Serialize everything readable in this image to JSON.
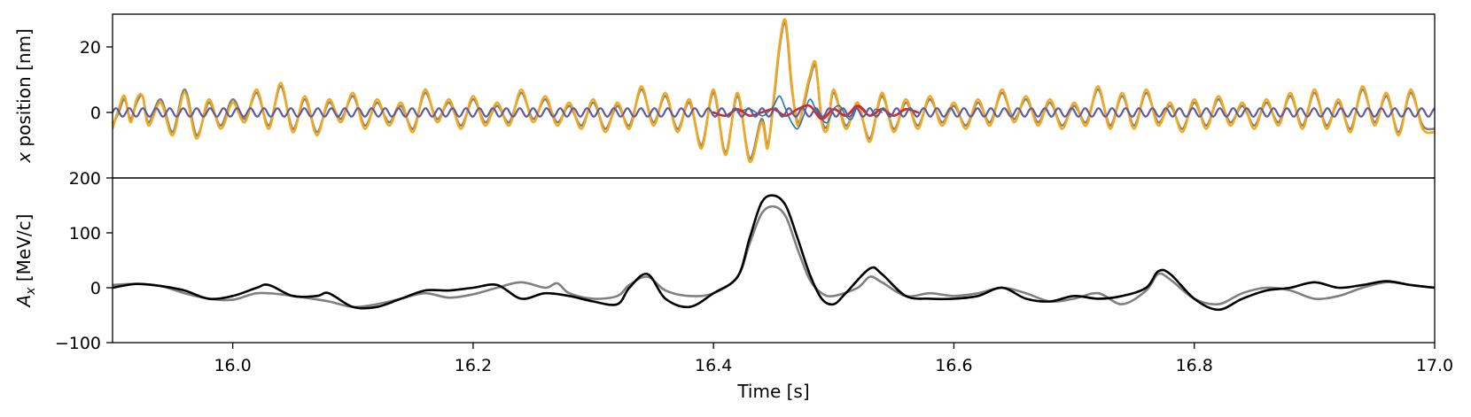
{
  "chart_data": [
    {
      "type": "line",
      "panel": "top",
      "xlabel": "",
      "ylabel_var": "x",
      "ylabel_rest": " position [nm]",
      "xlim": [
        15.9,
        17.0
      ],
      "ylim": [
        -20,
        30
      ],
      "yticks": [
        20,
        0
      ],
      "ytick_labels": [
        "20",
        "0"
      ],
      "grid": false,
      "series": [
        {
          "color": "#808080",
          "x": [
            15.9,
            15.905,
            15.91,
            15.915,
            15.92,
            15.925,
            15.93,
            15.94,
            15.95,
            15.96,
            15.97,
            15.98,
            15.99,
            16.0,
            16.01,
            16.02,
            16.03,
            16.04,
            16.05,
            16.06,
            16.07,
            16.08,
            16.09,
            16.1,
            16.11,
            16.12,
            16.13,
            16.14,
            16.15,
            16.16,
            16.17,
            16.18,
            16.19,
            16.2,
            16.21,
            16.22,
            16.23,
            16.24,
            16.25,
            16.26,
            16.27,
            16.28,
            16.29,
            16.3,
            16.31,
            16.32,
            16.33,
            16.34,
            16.35,
            16.36,
            16.37,
            16.38,
            16.39,
            16.4,
            16.41,
            16.42,
            16.43,
            16.44,
            16.445,
            16.45,
            16.455,
            16.46,
            16.465,
            16.47,
            16.475,
            16.48,
            16.485,
            16.49,
            16.495,
            16.5,
            16.51,
            16.52,
            16.53,
            16.54,
            16.55,
            16.56,
            16.57,
            16.58,
            16.59,
            16.6,
            16.61,
            16.62,
            16.63,
            16.64,
            16.65,
            16.66,
            16.67,
            16.68,
            16.69,
            16.7,
            16.71,
            16.72,
            16.73,
            16.74,
            16.75,
            16.76,
            16.77,
            16.78,
            16.79,
            16.8,
            16.81,
            16.82,
            16.83,
            16.84,
            16.85,
            16.86,
            16.87,
            16.88,
            16.89,
            16.9,
            16.91,
            16.92,
            16.93,
            16.94,
            16.95,
            16.96,
            16.97,
            16.98,
            16.99,
            17.0
          ],
          "y": [
            -4,
            0,
            4,
            -2,
            3,
            5,
            -3,
            4,
            -6,
            7,
            -7,
            3,
            -4,
            4,
            -2,
            6,
            -4,
            8,
            -5,
            4,
            -6,
            3,
            -2,
            5,
            -4,
            3,
            -3,
            2,
            -5,
            6,
            -2,
            3,
            -4,
            4,
            -3,
            2,
            -3,
            6,
            -2,
            4,
            -3,
            2,
            -4,
            3,
            -5,
            2,
            -4,
            7,
            -3,
            5,
            -5,
            3,
            -10,
            6,
            -12,
            5,
            -14,
            -2,
            -10,
            3,
            20,
            27,
            8,
            -3,
            2,
            10,
            14,
            -2,
            -4,
            6,
            -4,
            2,
            -8,
            5,
            -5,
            3,
            -4,
            4,
            -3,
            2,
            -4,
            3,
            -3,
            6,
            -2,
            4,
            -3,
            3,
            -4,
            2,
            -3,
            7,
            -4,
            5,
            -4,
            6,
            -3,
            2,
            -5,
            3,
            -4,
            4,
            -3,
            2,
            -4,
            3,
            -3,
            5,
            -4,
            6,
            -4,
            3,
            -5,
            7,
            -3,
            5,
            -6,
            6,
            -4,
            -5
          ]
        },
        {
          "color": "#f2a81d",
          "x": [
            15.9,
            15.905,
            15.91,
            15.915,
            15.92,
            15.925,
            15.93,
            15.94,
            15.95,
            15.96,
            15.97,
            15.98,
            15.99,
            16.0,
            16.01,
            16.02,
            16.03,
            16.04,
            16.05,
            16.06,
            16.07,
            16.08,
            16.09,
            16.1,
            16.11,
            16.12,
            16.13,
            16.14,
            16.15,
            16.16,
            16.17,
            16.18,
            16.19,
            16.2,
            16.21,
            16.22,
            16.23,
            16.24,
            16.25,
            16.26,
            16.27,
            16.28,
            16.29,
            16.3,
            16.31,
            16.32,
            16.33,
            16.34,
            16.35,
            16.36,
            16.37,
            16.38,
            16.39,
            16.4,
            16.41,
            16.42,
            16.43,
            16.44,
            16.445,
            16.45,
            16.455,
            16.46,
            16.465,
            16.47,
            16.475,
            16.48,
            16.485,
            16.49,
            16.495,
            16.5,
            16.51,
            16.52,
            16.53,
            16.54,
            16.55,
            16.56,
            16.57,
            16.58,
            16.59,
            16.6,
            16.61,
            16.62,
            16.63,
            16.64,
            16.65,
            16.66,
            16.67,
            16.68,
            16.69,
            16.7,
            16.71,
            16.72,
            16.73,
            16.74,
            16.75,
            16.76,
            16.77,
            16.78,
            16.79,
            16.8,
            16.81,
            16.82,
            16.83,
            16.84,
            16.85,
            16.86,
            16.87,
            16.88,
            16.89,
            16.9,
            16.91,
            16.92,
            16.93,
            16.94,
            16.95,
            16.96,
            16.97,
            16.98,
            16.99,
            17.0
          ],
          "y": [
            -5,
            1,
            5,
            -3,
            4,
            5,
            -4,
            3,
            -7,
            6,
            -8,
            4,
            -5,
            3,
            -3,
            7,
            -5,
            9,
            -6,
            5,
            -7,
            4,
            -3,
            6,
            -5,
            4,
            -4,
            3,
            -6,
            7,
            -3,
            4,
            -5,
            5,
            -4,
            3,
            -4,
            7,
            -3,
            5,
            -4,
            3,
            -5,
            4,
            -6,
            3,
            -5,
            8,
            -4,
            6,
            -6,
            4,
            -11,
            7,
            -13,
            6,
            -15,
            -3,
            -11,
            4,
            21,
            28,
            9,
            -4,
            3,
            11,
            15,
            -3,
            -5,
            7,
            -5,
            3,
            -9,
            6,
            -6,
            4,
            -5,
            5,
            -4,
            3,
            -5,
            4,
            -4,
            7,
            -3,
            5,
            -4,
            4,
            -5,
            3,
            -4,
            8,
            -5,
            6,
            -5,
            7,
            -4,
            3,
            -6,
            4,
            -5,
            5,
            -4,
            3,
            -5,
            4,
            -4,
            6,
            -5,
            7,
            -5,
            4,
            -6,
            8,
            -4,
            6,
            -7,
            7,
            -5,
            -6
          ]
        },
        {
          "color": "#1f77b4",
          "x": [
            16.42,
            16.43,
            16.44,
            16.445,
            16.45,
            16.455,
            16.46,
            16.465,
            16.47,
            16.475,
            16.48,
            16.485,
            16.49,
            16.495,
            16.5,
            16.505,
            16.51,
            16.515,
            16.52,
            16.525,
            16.53,
            16.535,
            16.54
          ],
          "y": [
            0,
            1,
            -1,
            0,
            2,
            5,
            1,
            -3,
            -5,
            -1,
            4,
            1,
            -2,
            -3,
            1,
            2,
            -1,
            -2,
            2,
            1,
            -1,
            1,
            0
          ]
        },
        {
          "color": "#d62728",
          "x": [
            16.4,
            16.41,
            16.42,
            16.43,
            16.44,
            16.45,
            16.46,
            16.47,
            16.48,
            16.49,
            16.5,
            16.51,
            16.52,
            16.53,
            16.54,
            16.55,
            16.56,
            16.57
          ],
          "y": [
            0,
            -1,
            1,
            -1,
            0,
            1,
            -1,
            1,
            2,
            -2,
            1,
            -1,
            2,
            -1,
            1,
            -1,
            1,
            0
          ]
        },
        {
          "color": "#5f5b9e",
          "wave": {
            "amplitude": 1.3,
            "period": 0.0112
          },
          "x": [
            15.9,
            17.0
          ],
          "y": [
            0,
            0
          ]
        }
      ]
    },
    {
      "type": "line",
      "panel": "bottom",
      "xlabel": "Time [s]",
      "ylabel_var": "A",
      "ylabel_sub": "x",
      "ylabel_rest": " [MeV/c]",
      "xlim": [
        15.9,
        17.0
      ],
      "ylim": [
        -100,
        200
      ],
      "yticks": [
        200,
        100,
        0,
        -100
      ],
      "ytick_labels": [
        "200",
        "100",
        "0",
        "−100"
      ],
      "xticks": [
        16.0,
        16.2,
        16.4,
        16.6,
        16.8,
        17.0
      ],
      "xtick_labels": [
        "16.0",
        "16.2",
        "16.4",
        "16.6",
        "16.8",
        "17.0"
      ],
      "grid": false,
      "series": [
        {
          "color": "#808080",
          "x": [
            15.9,
            15.92,
            15.94,
            15.96,
            15.98,
            16.0,
            16.02,
            16.04,
            16.06,
            16.08,
            16.1,
            16.12,
            16.14,
            16.16,
            16.18,
            16.2,
            16.22,
            16.24,
            16.26,
            16.27,
            16.28,
            16.3,
            16.32,
            16.33,
            16.345,
            16.36,
            16.38,
            16.4,
            16.42,
            16.43,
            16.44,
            16.45,
            16.46,
            16.47,
            16.48,
            16.49,
            16.5,
            16.52,
            16.53,
            16.54,
            16.56,
            16.58,
            16.6,
            16.62,
            16.64,
            16.66,
            16.68,
            16.7,
            16.72,
            16.74,
            16.76,
            16.77,
            16.78,
            16.8,
            16.82,
            16.84,
            16.86,
            16.88,
            16.9,
            16.92,
            16.94,
            16.96,
            16.98,
            17.0
          ],
          "y": [
            5,
            7,
            3,
            -10,
            -20,
            -22,
            -10,
            -12,
            -18,
            -25,
            -35,
            -30,
            -20,
            -10,
            -18,
            -12,
            0,
            10,
            0,
            8,
            -10,
            -20,
            -15,
            5,
            20,
            -5,
            -15,
            -10,
            20,
            80,
            135,
            148,
            130,
            70,
            15,
            -10,
            -15,
            0,
            20,
            10,
            -15,
            -10,
            -15,
            -10,
            0,
            -10,
            -25,
            -20,
            -10,
            -30,
            -5,
            25,
            15,
            -20,
            -30,
            -10,
            0,
            -5,
            -20,
            -15,
            0,
            10,
            5,
            0
          ]
        },
        {
          "color": "#000000",
          "x": [
            15.9,
            15.92,
            15.94,
            15.96,
            15.98,
            16.0,
            16.02,
            16.03,
            16.05,
            16.07,
            16.08,
            16.1,
            16.12,
            16.14,
            16.16,
            16.18,
            16.2,
            16.22,
            16.24,
            16.26,
            16.28,
            16.3,
            16.32,
            16.33,
            16.345,
            16.36,
            16.38,
            16.4,
            16.42,
            16.43,
            16.44,
            16.45,
            16.46,
            16.47,
            16.48,
            16.49,
            16.5,
            16.51,
            16.53,
            16.54,
            16.56,
            16.58,
            16.6,
            16.62,
            16.64,
            16.66,
            16.68,
            16.7,
            16.72,
            16.74,
            16.76,
            16.77,
            16.78,
            16.8,
            16.82,
            16.84,
            16.86,
            16.88,
            16.9,
            16.92,
            16.94,
            16.96,
            16.98,
            17.0
          ],
          "y": [
            0,
            7,
            3,
            -5,
            -20,
            -15,
            0,
            5,
            -15,
            -15,
            -10,
            -35,
            -35,
            -20,
            -5,
            -5,
            0,
            5,
            -20,
            -10,
            -15,
            -25,
            -30,
            0,
            25,
            -20,
            -35,
            -10,
            20,
            90,
            155,
            168,
            150,
            90,
            25,
            -20,
            -30,
            -10,
            35,
            25,
            -15,
            -20,
            -20,
            -15,
            0,
            -20,
            -25,
            -15,
            -20,
            -15,
            0,
            30,
            25,
            -20,
            -40,
            -20,
            -5,
            0,
            10,
            0,
            5,
            12,
            5,
            0
          ]
        }
      ]
    }
  ]
}
